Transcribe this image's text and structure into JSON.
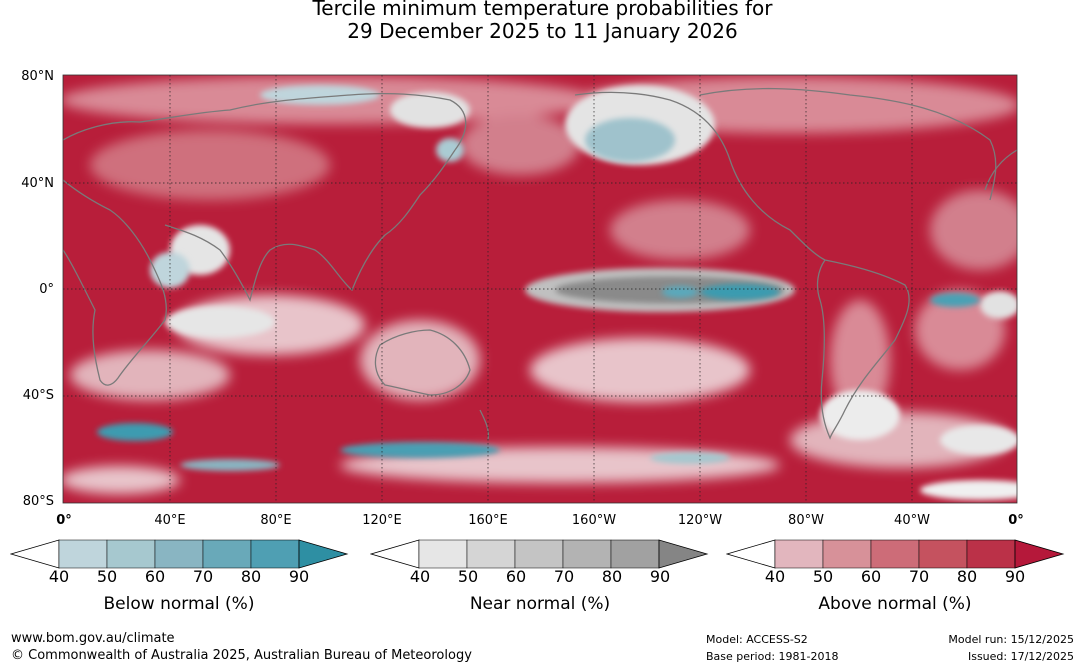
{
  "title": {
    "line1": "Tercile minimum temperature probabilities for",
    "line2": "29 December 2025 to 11 January 2026"
  },
  "map": {
    "lat_labels": [
      "80°N",
      "40°N",
      "0°",
      "40°S",
      "80°S"
    ],
    "lon_labels": [
      "0°",
      "40°E",
      "80°E",
      "120°E",
      "160°E",
      "160°W",
      "120°W",
      "80°W",
      "40°W",
      "0°"
    ],
    "colors": {
      "ocean_above": "#b81e3a",
      "coast": "#7a7a7a",
      "grid": "#222222"
    }
  },
  "colorbars": [
    {
      "label": "Below normal (%)",
      "ticks": [
        "40",
        "50",
        "60",
        "70",
        "80",
        "90"
      ],
      "colors": [
        "#ffffff",
        "#bfd5dc",
        "#a6c8cf",
        "#89b5c2",
        "#69a9b9",
        "#4f9fb3",
        "#2e8fa3"
      ]
    },
    {
      "label": "Near normal (%)",
      "ticks": [
        "40",
        "50",
        "60",
        "70",
        "80",
        "90"
      ],
      "colors": [
        "#ffffff",
        "#e6e6e6",
        "#d5d5d5",
        "#c4c4c4",
        "#b3b3b3",
        "#a1a1a1",
        "#858585"
      ]
    },
    {
      "label": "Above normal (%)",
      "ticks": [
        "40",
        "50",
        "60",
        "70",
        "80",
        "90"
      ],
      "colors": [
        "#ffffff",
        "#e2b6be",
        "#d79199",
        "#cd6c78",
        "#c5525f",
        "#bb3148",
        "#b5183a"
      ]
    }
  ],
  "footer": {
    "website": "www.bom.gov.au/climate",
    "copyright": "© Commonwealth of Australia 2025, Australian Bureau of Meteorology",
    "model": "Model: ACCESS-S2",
    "base_period": "Base period: 1981-2018",
    "model_run": "Model run: 15/12/2025",
    "issued": "Issued: 17/12/2025"
  }
}
